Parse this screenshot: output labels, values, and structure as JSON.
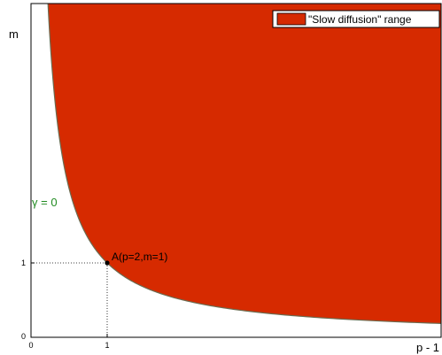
{
  "chart_data": {
    "type": "area",
    "xlabel": "p - 1",
    "ylabel": "m",
    "xlim": [
      0,
      5
    ],
    "ylim": [
      0,
      4.4
    ],
    "x_ticks": [
      "0",
      "1"
    ],
    "y_ticks": [
      "0",
      "1"
    ],
    "grid": false,
    "legend": {
      "entries": [
        "\"Slow diffusion\" range"
      ],
      "placement": "top-right"
    },
    "region": {
      "name": "\"Slow diffusion\" range",
      "description_formula": "m * (p - 1) >= 1"
    },
    "boundary_curve": {
      "label": "γ = 0",
      "equation": "m = 1 / (p - 1)"
    },
    "point": {
      "label": "A(p=2,m=1)",
      "x": 1,
      "y": 1
    },
    "colors": {
      "region": "#d62a00",
      "boundary": "#6b6b50",
      "curve_label": "#228b22",
      "frame": "#000000",
      "dotted_guides": "#000000"
    }
  }
}
